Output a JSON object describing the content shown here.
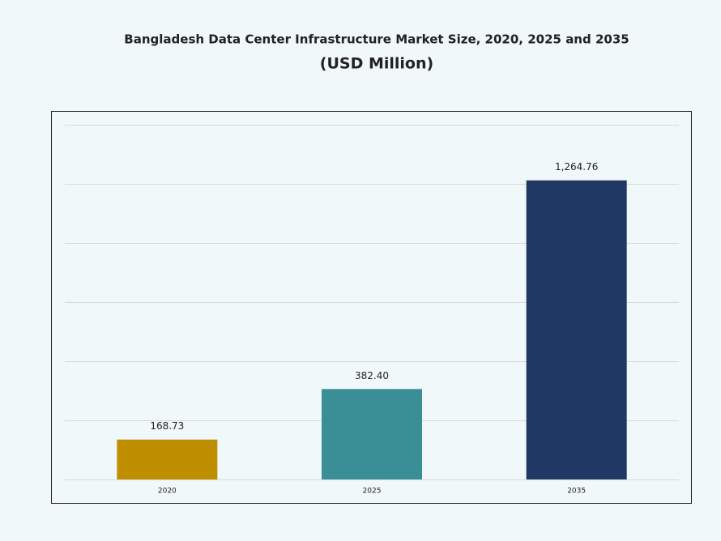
{
  "chart_data": {
    "type": "bar",
    "title": "Bangladesh Data Center Infrastructure  Market Size, 2020, 2025 and 2035",
    "subtitle": "(USD Million)",
    "categories": [
      "2020",
      "2025",
      "2035"
    ],
    "values": [
      168.73,
      382.4,
      1264.76
    ],
    "value_labels": [
      "168.73",
      "382.40",
      "1,264.76"
    ],
    "colors": [
      "#bf8f00",
      "#3a8f96",
      "#1f3864"
    ],
    "ylim": [
      0,
      1500
    ],
    "yticks": [
      0,
      250,
      500,
      750,
      1000,
      1250,
      1500
    ],
    "grid": true
  }
}
